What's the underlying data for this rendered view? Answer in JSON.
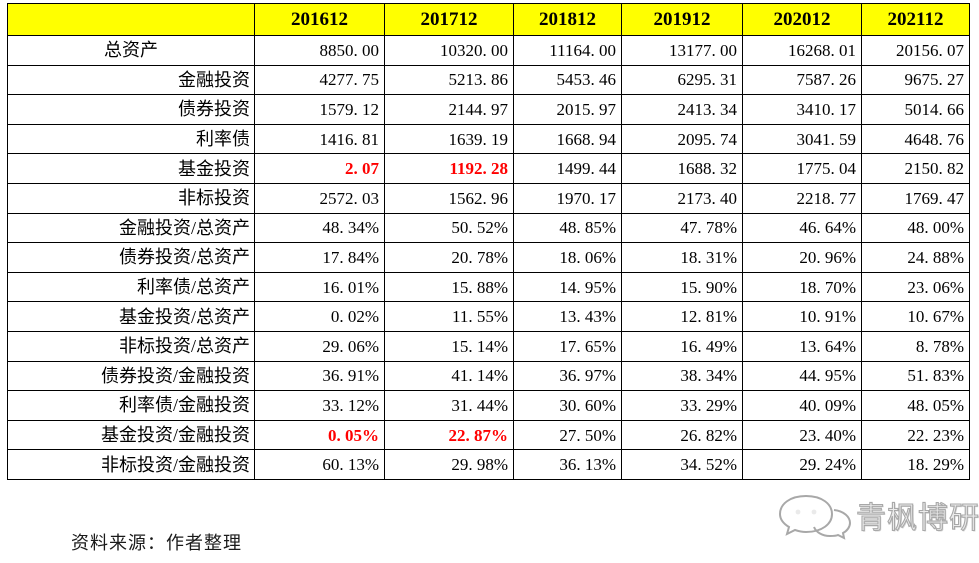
{
  "table": {
    "corner_label": "",
    "columns": [
      "201612",
      "201712",
      "201812",
      "201912",
      "202012",
      "202112"
    ],
    "rows": [
      {
        "label": "总资产",
        "align": "center",
        "red": [],
        "values": [
          "8850.00",
          "10320.00",
          "11164.00",
          "13177.00",
          "16268.01",
          "20156.07"
        ]
      },
      {
        "label": "金融投资",
        "align": "right",
        "red": [],
        "values": [
          "4277.75",
          "5213.86",
          "5453.46",
          "6295.31",
          "7587.26",
          "9675.27"
        ]
      },
      {
        "label": "债券投资",
        "align": "right",
        "red": [],
        "values": [
          "1579.12",
          "2144.97",
          "2015.97",
          "2413.34",
          "3410.17",
          "5014.66"
        ]
      },
      {
        "label": "利率债",
        "align": "right",
        "red": [],
        "values": [
          "1416.81",
          "1639.19",
          "1668.94",
          "2095.74",
          "3041.59",
          "4648.76"
        ]
      },
      {
        "label": "基金投资",
        "align": "right",
        "red": [
          0,
          1
        ],
        "values": [
          "2.07",
          "1192.28",
          "1499.44",
          "1688.32",
          "1775.04",
          "2150.82"
        ]
      },
      {
        "label": "非标投资",
        "align": "right",
        "red": [],
        "values": [
          "2572.03",
          "1562.96",
          "1970.17",
          "2173.40",
          "2218.77",
          "1769.47"
        ]
      },
      {
        "label": "金融投资/总资产",
        "align": "right",
        "red": [],
        "values": [
          "48.34%",
          "50.52%",
          "48.85%",
          "47.78%",
          "46.64%",
          "48.00%"
        ]
      },
      {
        "label": "债券投资/总资产",
        "align": "right",
        "red": [],
        "values": [
          "17.84%",
          "20.78%",
          "18.06%",
          "18.31%",
          "20.96%",
          "24.88%"
        ]
      },
      {
        "label": "利率债/总资产",
        "align": "right",
        "red": [],
        "values": [
          "16.01%",
          "15.88%",
          "14.95%",
          "15.90%",
          "18.70%",
          "23.06%"
        ]
      },
      {
        "label": "基金投资/总资产",
        "align": "right",
        "red": [],
        "values": [
          "0.02%",
          "11.55%",
          "13.43%",
          "12.81%",
          "10.91%",
          "10.67%"
        ]
      },
      {
        "label": "非标投资/总资产",
        "align": "right",
        "red": [],
        "values": [
          "29.06%",
          "15.14%",
          "17.65%",
          "16.49%",
          "13.64%",
          "8.78%"
        ]
      },
      {
        "label": "债券投资/金融投资",
        "align": "right",
        "red": [],
        "values": [
          "36.91%",
          "41.14%",
          "36.97%",
          "38.34%",
          "44.95%",
          "51.83%"
        ]
      },
      {
        "label": "利率债/金融投资",
        "align": "right",
        "red": [],
        "values": [
          "33.12%",
          "31.44%",
          "30.60%",
          "33.29%",
          "40.09%",
          "48.05%"
        ]
      },
      {
        "label": "基金投资/金融投资",
        "align": "right",
        "red": [
          0,
          1
        ],
        "values": [
          "0.05%",
          "22.87%",
          "27.50%",
          "26.82%",
          "23.40%",
          "22.23%"
        ]
      },
      {
        "label": "非标投资/金融投资",
        "align": "right",
        "red": [],
        "values": [
          "60.13%",
          "29.98%",
          "36.13%",
          "34.52%",
          "29.24%",
          "18.29%"
        ]
      }
    ]
  },
  "footer": {
    "source_note": "资料来源：作者整理"
  },
  "watermark": {
    "text": "青枫博研社",
    "icon": "wechat-bubbles-icon"
  },
  "colors": {
    "header_bg": "#FFFF00",
    "highlight_red": "#FF0000",
    "border": "#000000",
    "watermark_gray": "#9A9A9A"
  },
  "chart_data": {
    "type": "table",
    "title": "",
    "categories": [
      "201612",
      "201712",
      "201812",
      "201912",
      "202012",
      "202112"
    ],
    "series": [
      {
        "name": "总资产",
        "values": [
          8850.0,
          10320.0,
          11164.0,
          13177.0,
          16268.01,
          20156.07
        ]
      },
      {
        "name": "金融投资",
        "values": [
          4277.75,
          5213.86,
          5453.46,
          6295.31,
          7587.26,
          9675.27
        ]
      },
      {
        "name": "债券投资",
        "values": [
          1579.12,
          2144.97,
          2015.97,
          2413.34,
          3410.17,
          5014.66
        ]
      },
      {
        "name": "利率债",
        "values": [
          1416.81,
          1639.19,
          1668.94,
          2095.74,
          3041.59,
          4648.76
        ]
      },
      {
        "name": "基金投资",
        "values": [
          2.07,
          1192.28,
          1499.44,
          1688.32,
          1775.04,
          2150.82
        ],
        "highlighted_indices": [
          0,
          1
        ]
      },
      {
        "name": "非标投资",
        "values": [
          2572.03,
          1562.96,
          1970.17,
          2173.4,
          2218.77,
          1769.47
        ]
      },
      {
        "name": "金融投资/总资产",
        "unit": "%",
        "values": [
          48.34,
          50.52,
          48.85,
          47.78,
          46.64,
          48.0
        ]
      },
      {
        "name": "债券投资/总资产",
        "unit": "%",
        "values": [
          17.84,
          20.78,
          18.06,
          18.31,
          20.96,
          24.88
        ]
      },
      {
        "name": "利率债/总资产",
        "unit": "%",
        "values": [
          16.01,
          15.88,
          14.95,
          15.9,
          18.7,
          23.06
        ]
      },
      {
        "name": "基金投资/总资产",
        "unit": "%",
        "values": [
          0.02,
          11.55,
          13.43,
          12.81,
          10.91,
          10.67
        ]
      },
      {
        "name": "非标投资/总资产",
        "unit": "%",
        "values": [
          29.06,
          15.14,
          17.65,
          16.49,
          13.64,
          8.78
        ]
      },
      {
        "name": "债券投资/金融投资",
        "unit": "%",
        "values": [
          36.91,
          41.14,
          36.97,
          38.34,
          44.95,
          51.83
        ]
      },
      {
        "name": "利率债/金融投资",
        "unit": "%",
        "values": [
          33.12,
          31.44,
          30.6,
          33.29,
          40.09,
          48.05
        ]
      },
      {
        "name": "基金投资/金融投资",
        "unit": "%",
        "values": [
          0.05,
          22.87,
          27.5,
          26.82,
          23.4,
          22.23
        ],
        "highlighted_indices": [
          0,
          1
        ]
      },
      {
        "name": "非标投资/金融投资",
        "unit": "%",
        "values": [
          60.13,
          29.98,
          36.13,
          34.52,
          29.24,
          18.29
        ]
      }
    ],
    "legend_position": "none",
    "grid": true
  }
}
